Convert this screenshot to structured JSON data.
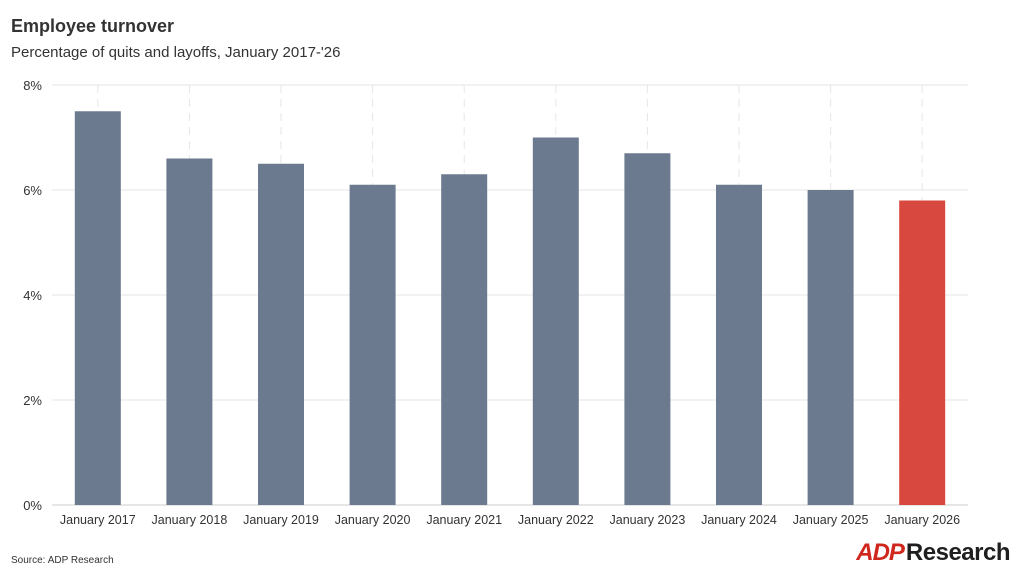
{
  "header": {
    "title": "Employee turnover",
    "subtitle": "Percentage of quits and layoffs, January 2017-'26"
  },
  "footer": {
    "source": "Source: ADP Research",
    "logo_mark": "ADP",
    "logo_text": "Research"
  },
  "colors": {
    "bar": "#6b7a8f",
    "highlight": "#d9483e",
    "grid": "#e6e6e6",
    "axis": "#cccccc"
  },
  "chart_data": {
    "type": "bar",
    "title": "Employee turnover",
    "subtitle": "Percentage of quits and layoffs, January 2017-'26",
    "categories": [
      "January 2017",
      "January 2018",
      "January 2019",
      "January 2020",
      "January 2021",
      "January 2022",
      "January 2023",
      "January 2024",
      "January 2025",
      "January 2026"
    ],
    "values": [
      7.5,
      6.6,
      6.5,
      6.1,
      6.3,
      7.0,
      6.7,
      6.1,
      6.0,
      5.8
    ],
    "highlight_index": 9,
    "ylim": [
      0,
      8
    ],
    "yticks": [
      0,
      2,
      4,
      6,
      8
    ],
    "ytick_labels": [
      "0%",
      "2%",
      "4%",
      "6%",
      "8%"
    ],
    "xlabel": "",
    "ylabel": "",
    "grid": true,
    "legend": "none"
  }
}
